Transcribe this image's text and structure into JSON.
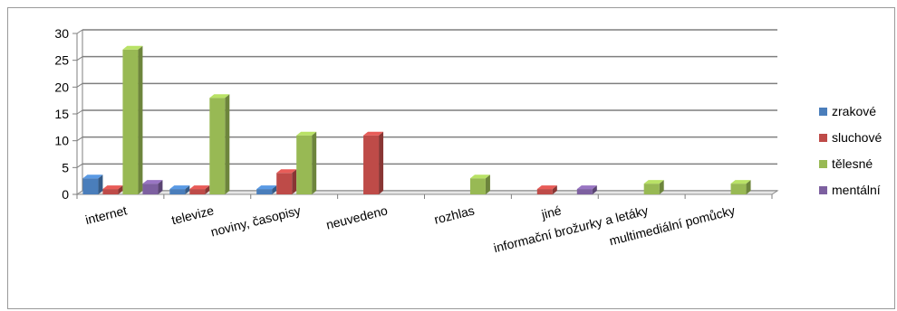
{
  "chart_data": {
    "type": "bar",
    "title": "",
    "xlabel": "",
    "ylabel": "",
    "ylim": [
      0,
      30
    ],
    "yticks": [
      0,
      5,
      10,
      15,
      20,
      25,
      30
    ],
    "grid": true,
    "legend_position": "right",
    "categories": [
      "internet",
      "televize",
      "noviny, časopisy",
      "neuvedeno",
      "rozhlas",
      "jiné",
      "informační brožurky a letáky",
      "multimediální pomůcky"
    ],
    "series": [
      {
        "name": "zrakové",
        "color": "#4a7ebb",
        "values": [
          3,
          1,
          1,
          0,
          0,
          0,
          0,
          0
        ]
      },
      {
        "name": "sluchové",
        "color": "#be4b48",
        "values": [
          1,
          1,
          4,
          11,
          0,
          1,
          0,
          0
        ]
      },
      {
        "name": "tělesné",
        "color": "#98b954",
        "values": [
          27,
          18,
          11,
          0,
          3,
          0,
          2,
          2
        ]
      },
      {
        "name": "mentální",
        "color": "#7d60a0",
        "values": [
          2,
          0,
          0,
          0,
          0,
          1,
          0,
          0
        ]
      }
    ]
  }
}
